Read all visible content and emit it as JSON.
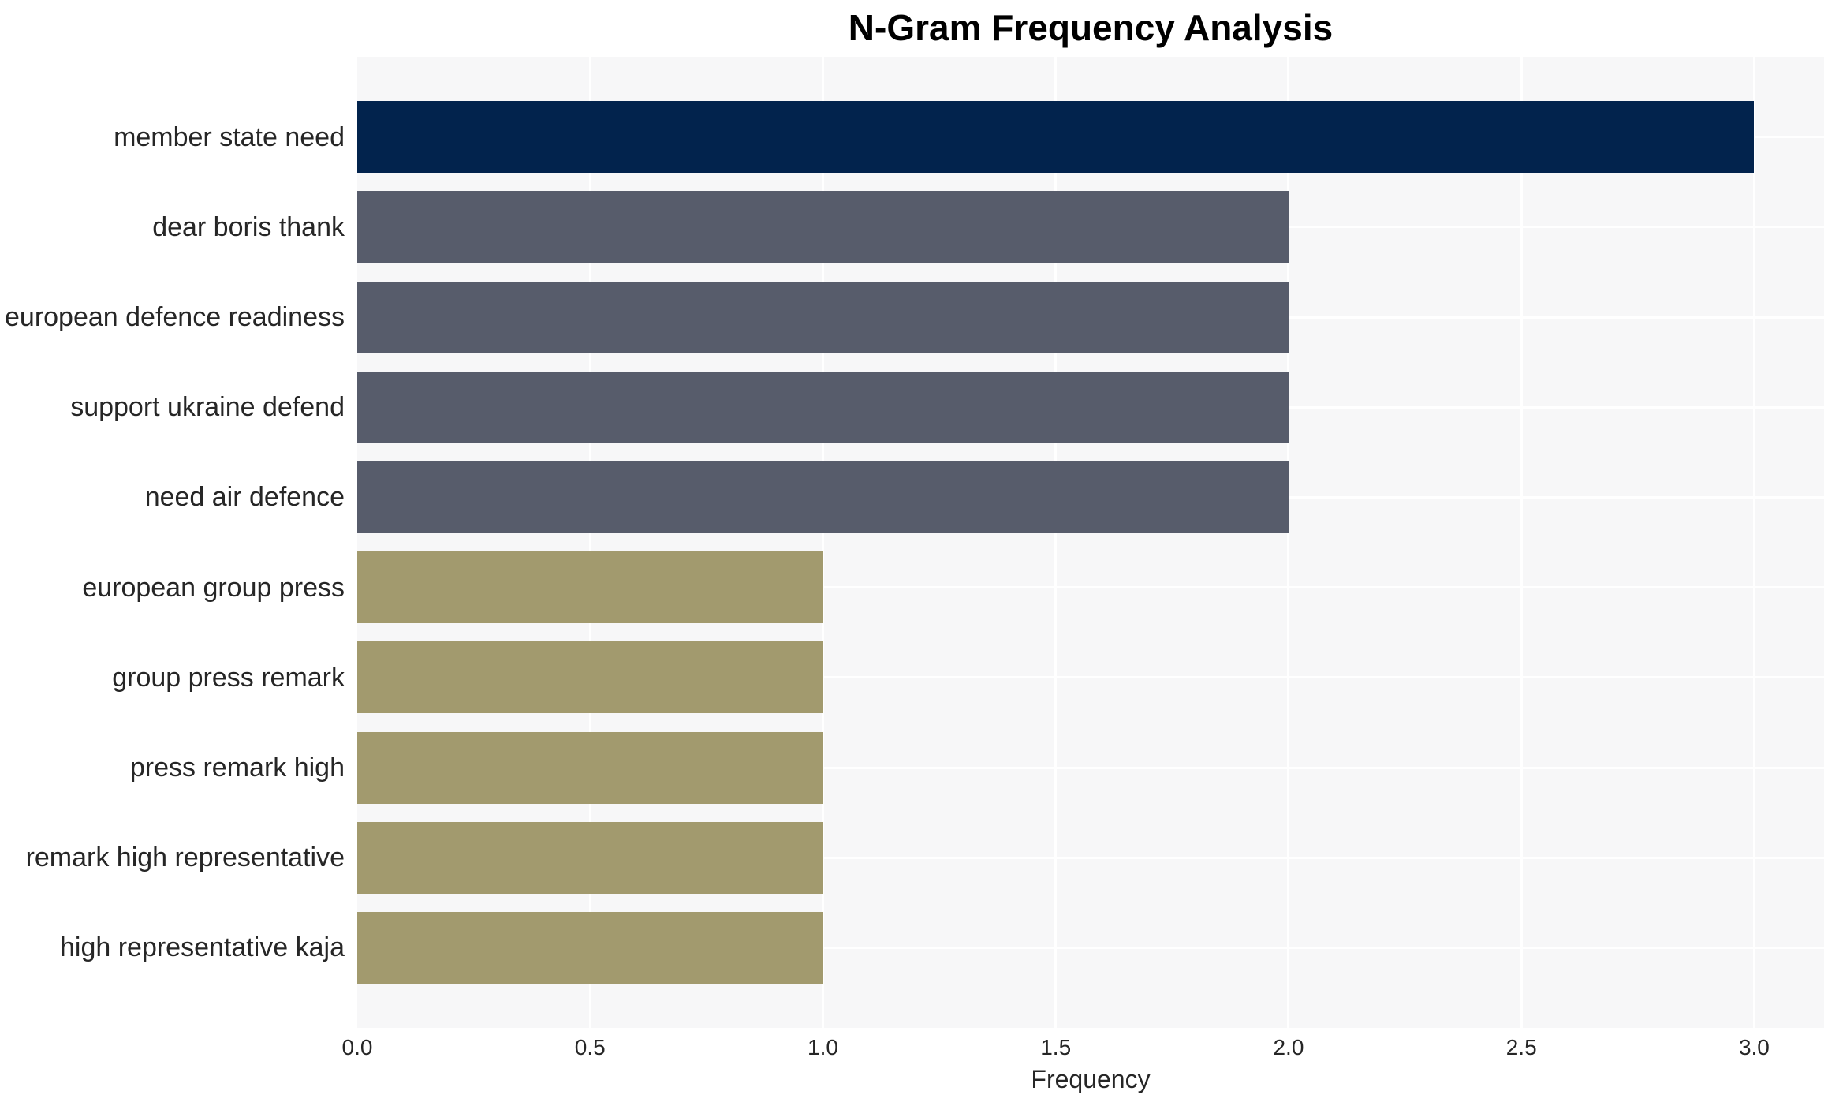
{
  "chart_data": {
    "type": "bar",
    "orientation": "horizontal",
    "title": "N-Gram Frequency Analysis",
    "xlabel": "Frequency",
    "ylabel": "",
    "categories": [
      "member state need",
      "dear boris thank",
      "european defence readiness",
      "support ukraine defend",
      "need air defence",
      "european group press",
      "group press remark",
      "press remark high",
      "remark high representative",
      "high representative kaja"
    ],
    "values": [
      3,
      2,
      2,
      2,
      2,
      1,
      1,
      1,
      1,
      1
    ],
    "bar_colors": [
      "#02234D",
      "#575C6B",
      "#575C6B",
      "#575C6B",
      "#575C6B",
      "#A29A6E",
      "#A29A6E",
      "#A29A6E",
      "#A29A6E",
      "#A29A6E"
    ],
    "xlim": [
      0,
      3.15
    ],
    "xtick_values": [
      0.0,
      0.5,
      1.0,
      1.5,
      2.0,
      2.5,
      3.0
    ],
    "xtick_labels": [
      "0.0",
      "0.5",
      "1.0",
      "1.5",
      "2.0",
      "2.5",
      "3.0"
    ],
    "grid": "on",
    "legend": "none",
    "colors": {
      "plot_bg": "#F7F7F8",
      "grid_line": "#FFFFFF",
      "tick_text": "#262626",
      "title_text": "#000000"
    }
  }
}
